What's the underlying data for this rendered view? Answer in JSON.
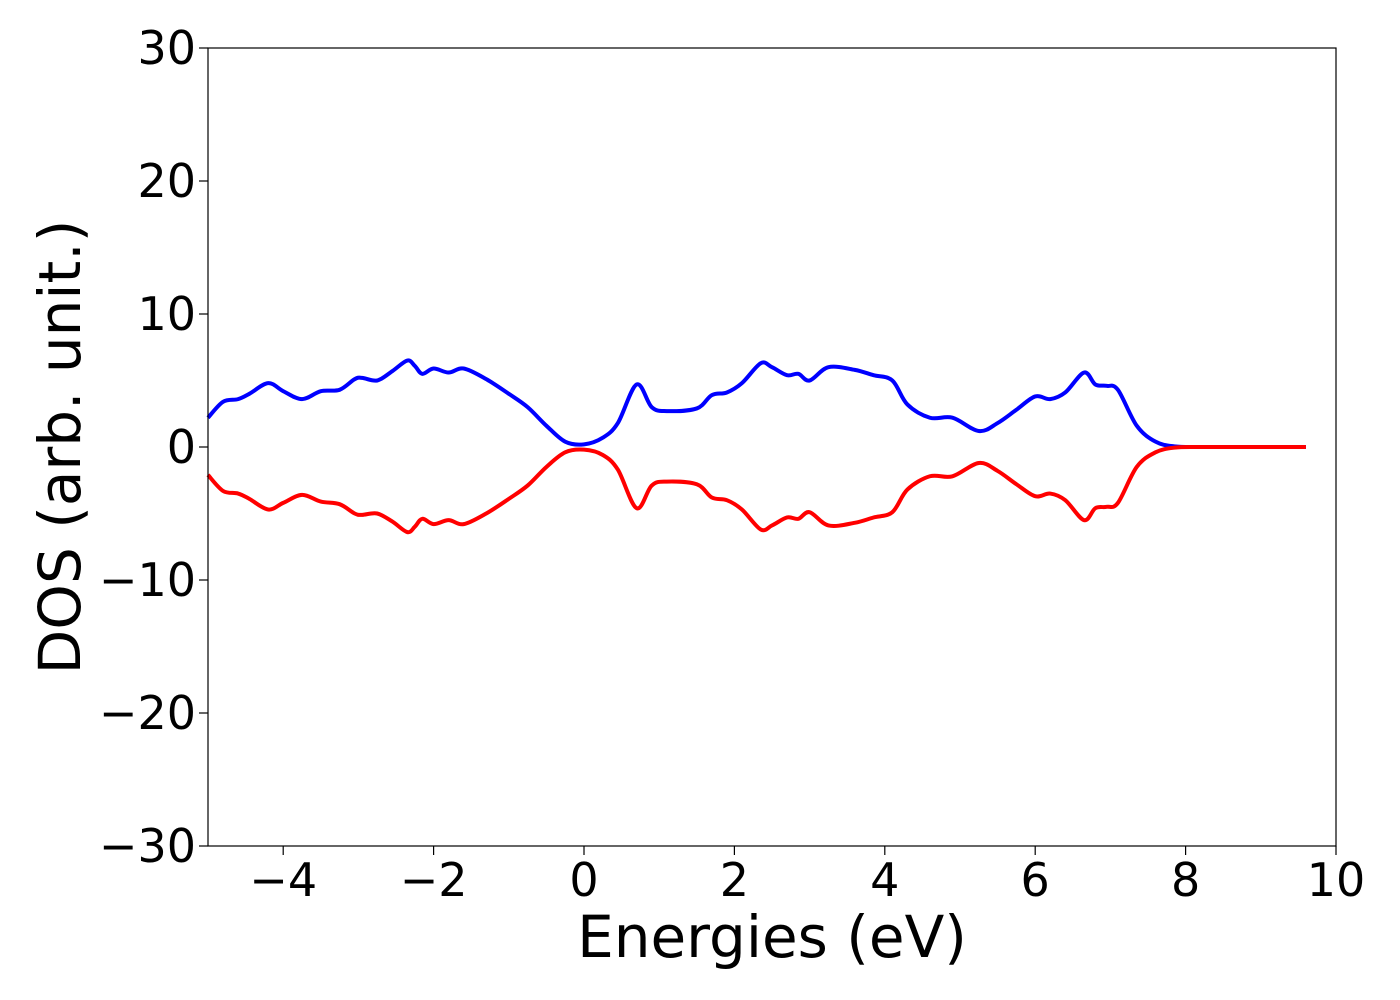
{
  "chart_data": {
    "type": "line",
    "title": "",
    "xlabel": "Energies (eV)",
    "ylabel": "DOS (arb. unit.)",
    "xlim": [
      -5,
      10
    ],
    "ylim": [
      -30,
      30
    ],
    "xticks": [
      -4,
      -2,
      0,
      2,
      4,
      6,
      8,
      10
    ],
    "yticks": [
      -30,
      -20,
      -10,
      0,
      10,
      20,
      30
    ],
    "xtick_labels": [
      "−4",
      "−2",
      "0",
      "2",
      "4",
      "6",
      "8",
      "10"
    ],
    "ytick_labels": [
      "−30",
      "−20",
      "−10",
      "0",
      "10",
      "20",
      "30"
    ],
    "grid": false,
    "legend": "none",
    "series": [
      {
        "color": "#0000ff",
        "x": [
          -5.0,
          -4.8,
          -4.6,
          -4.45,
          -4.2,
          -4.0,
          -3.75,
          -3.5,
          -3.25,
          -3.05,
          -2.95,
          -2.75,
          -2.55,
          -2.35,
          -2.25,
          -2.15,
          -2.0,
          -1.8,
          -1.6,
          -1.3,
          -1.0,
          -0.75,
          -0.5,
          -0.25,
          0.0,
          0.25,
          0.45,
          0.7,
          0.9,
          1.1,
          1.5,
          1.7,
          1.9,
          2.1,
          2.35,
          2.5,
          2.7,
          2.85,
          3.0,
          3.25,
          3.6,
          3.85,
          4.1,
          4.3,
          4.6,
          4.9,
          5.25,
          5.5,
          5.75,
          6.0,
          6.2,
          6.4,
          6.65,
          6.8,
          6.95,
          7.1,
          7.35,
          7.6,
          7.85,
          8.2,
          9.0,
          9.6
        ],
        "y": [
          2.2,
          3.4,
          3.6,
          4.0,
          4.8,
          4.2,
          3.6,
          4.2,
          4.3,
          5.1,
          5.2,
          5.0,
          5.7,
          6.5,
          6.1,
          5.5,
          5.9,
          5.6,
          5.9,
          5.1,
          4.0,
          3.0,
          1.6,
          0.4,
          0.2,
          0.7,
          1.8,
          4.7,
          3.0,
          2.7,
          2.9,
          3.9,
          4.1,
          4.8,
          6.3,
          6.0,
          5.4,
          5.5,
          5.0,
          6.0,
          5.8,
          5.4,
          5.0,
          3.2,
          2.2,
          2.2,
          1.2,
          1.8,
          2.8,
          3.8,
          3.6,
          4.1,
          5.6,
          4.7,
          4.6,
          4.3,
          1.6,
          0.4,
          0.05,
          0.0,
          0.0,
          0.0
        ]
      },
      {
        "color": "#ff0000",
        "x": [
          -5.0,
          -4.8,
          -4.6,
          -4.45,
          -4.2,
          -4.0,
          -3.75,
          -3.5,
          -3.25,
          -3.05,
          -2.95,
          -2.75,
          -2.55,
          -2.35,
          -2.25,
          -2.15,
          -2.0,
          -1.8,
          -1.6,
          -1.3,
          -1.0,
          -0.75,
          -0.5,
          -0.25,
          0.0,
          0.25,
          0.45,
          0.7,
          0.9,
          1.1,
          1.5,
          1.7,
          1.9,
          2.1,
          2.35,
          2.5,
          2.7,
          2.85,
          3.0,
          3.25,
          3.6,
          3.85,
          4.1,
          4.3,
          4.6,
          4.9,
          5.25,
          5.5,
          5.75,
          6.0,
          6.2,
          6.4,
          6.65,
          6.8,
          6.95,
          7.1,
          7.35,
          7.6,
          7.85,
          8.2,
          9.0,
          9.6
        ],
        "y": [
          -2.1,
          -3.3,
          -3.5,
          -3.9,
          -4.7,
          -4.2,
          -3.6,
          -4.1,
          -4.3,
          -5.0,
          -5.1,
          -5.0,
          -5.6,
          -6.4,
          -6.0,
          -5.4,
          -5.8,
          -5.5,
          -5.8,
          -5.0,
          -3.9,
          -2.9,
          -1.5,
          -0.4,
          -0.2,
          -0.6,
          -1.7,
          -4.6,
          -2.9,
          -2.6,
          -2.8,
          -3.8,
          -4.0,
          -4.7,
          -6.2,
          -5.9,
          -5.3,
          -5.4,
          -4.9,
          -5.9,
          -5.7,
          -5.3,
          -4.9,
          -3.2,
          -2.2,
          -2.2,
          -1.2,
          -1.8,
          -2.8,
          -3.7,
          -3.5,
          -4.0,
          -5.5,
          -4.6,
          -4.5,
          -4.2,
          -1.5,
          -0.4,
          -0.05,
          0.0,
          0.0,
          0.0
        ]
      }
    ]
  }
}
